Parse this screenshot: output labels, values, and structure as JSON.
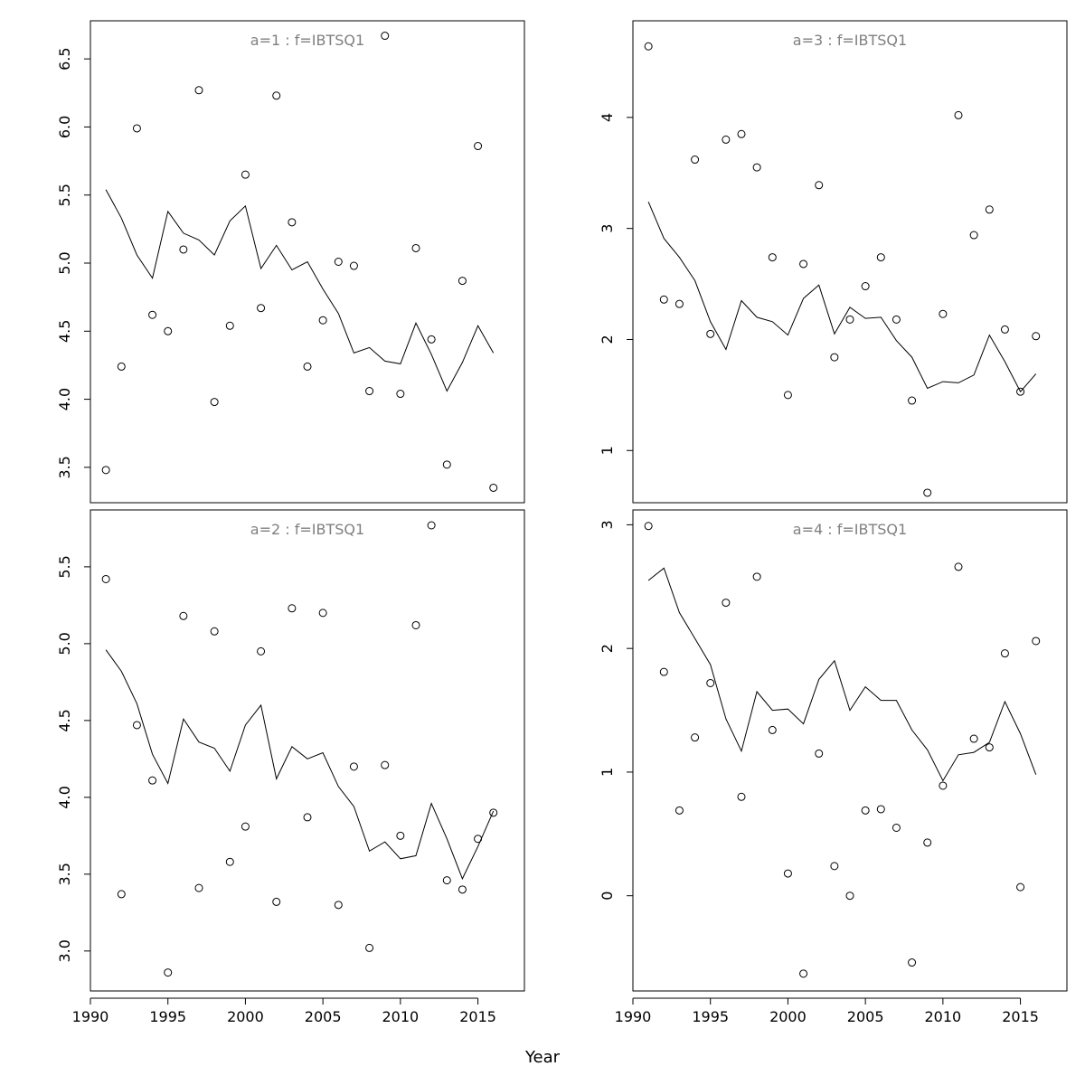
{
  "xlabel": "Year",
  "chart_data": [
    {
      "type": "scatter",
      "title": "a=1  :  f=IBTSQ1",
      "x": [
        1991,
        1992,
        1993,
        1994,
        1995,
        1996,
        1997,
        1998,
        1999,
        2000,
        2001,
        2002,
        2003,
        2004,
        2005,
        2006,
        2007,
        2008,
        2009,
        2010,
        2011,
        2012,
        2013,
        2014,
        2015,
        2016
      ],
      "series": [
        {
          "kind": "points",
          "values": [
            3.48,
            4.24,
            5.99,
            4.62,
            4.5,
            5.1,
            6.27,
            3.98,
            4.54,
            5.65,
            4.67,
            6.23,
            5.3,
            4.24,
            4.58,
            5.01,
            4.98,
            4.06,
            6.67,
            4.04,
            5.11,
            4.44,
            3.52,
            4.87,
            5.86,
            3.35
          ]
        },
        {
          "kind": "line",
          "values": [
            5.54,
            5.33,
            5.06,
            4.89,
            5.38,
            5.22,
            5.17,
            5.06,
            5.31,
            5.42,
            4.96,
            5.13,
            4.95,
            5.01,
            4.81,
            4.63,
            4.34,
            4.38,
            4.28,
            4.26,
            4.56,
            4.33,
            4.06,
            4.27,
            4.54,
            4.34
          ]
        }
      ],
      "xlim": [
        1990,
        2018
      ],
      "ylim": [
        3.24,
        6.78
      ],
      "yticks": [
        3.5,
        4.0,
        4.5,
        5.0,
        5.5,
        6.0,
        6.5
      ],
      "ytick_labels": [
        "3.5",
        "4.0",
        "4.5",
        "5.0",
        "5.5",
        "6.0",
        "6.5"
      ],
      "xticks": [],
      "xtick_labels": []
    },
    {
      "type": "scatter",
      "title": "a=3  :  f=IBTSQ1",
      "x": [
        1991,
        1992,
        1993,
        1994,
        1995,
        1996,
        1997,
        1998,
        1999,
        2000,
        2001,
        2002,
        2003,
        2004,
        2005,
        2006,
        2007,
        2008,
        2009,
        2010,
        2011,
        2012,
        2013,
        2014,
        2015,
        2016
      ],
      "series": [
        {
          "kind": "points",
          "values": [
            4.64,
            2.36,
            2.32,
            3.62,
            2.05,
            3.8,
            3.85,
            3.55,
            2.74,
            1.5,
            2.68,
            3.39,
            1.84,
            2.18,
            2.48,
            2.74,
            2.18,
            1.45,
            0.62,
            2.23,
            4.02,
            2.94,
            3.17,
            2.09,
            1.53,
            2.03
          ]
        },
        {
          "kind": "line",
          "values": [
            3.24,
            2.91,
            2.74,
            2.53,
            2.16,
            1.91,
            2.35,
            2.2,
            2.16,
            2.04,
            2.37,
            2.49,
            2.05,
            2.29,
            2.19,
            2.2,
            1.99,
            1.84,
            1.56,
            1.62,
            1.61,
            1.68,
            2.04,
            1.8,
            1.53,
            1.69
          ]
        }
      ],
      "xlim": [
        1990,
        2018
      ],
      "ylim": [
        0.53,
        4.87
      ],
      "yticks": [
        1,
        2,
        3,
        4
      ],
      "ytick_labels": [
        "1",
        "2",
        "3",
        "4"
      ],
      "xticks": [],
      "xtick_labels": []
    },
    {
      "type": "scatter",
      "title": "a=2  :  f=IBTSQ1",
      "x": [
        1991,
        1992,
        1993,
        1994,
        1995,
        1996,
        1997,
        1998,
        1999,
        2000,
        2001,
        2002,
        2003,
        2004,
        2005,
        2006,
        2007,
        2008,
        2009,
        2010,
        2011,
        2012,
        2013,
        2014,
        2015,
        2016
      ],
      "series": [
        {
          "kind": "points",
          "values": [
            5.42,
            3.37,
            4.47,
            4.11,
            2.86,
            5.18,
            3.41,
            5.08,
            3.58,
            3.81,
            4.95,
            3.32,
            5.23,
            3.87,
            5.2,
            3.3,
            4.2,
            3.02,
            4.21,
            3.75,
            5.12,
            5.77,
            3.46,
            3.4,
            3.73,
            3.9
          ]
        },
        {
          "kind": "line",
          "values": [
            4.96,
            4.82,
            4.61,
            4.28,
            4.09,
            4.51,
            4.36,
            4.32,
            4.17,
            4.47,
            4.6,
            4.12,
            4.33,
            4.25,
            4.29,
            4.07,
            3.94,
            3.65,
            3.71,
            3.6,
            3.62,
            3.96,
            3.73,
            3.47,
            3.68,
            3.91
          ]
        }
      ],
      "xlim": [
        1990,
        2018
      ],
      "ylim": [
        2.74,
        5.87
      ],
      "yticks": [
        3.0,
        3.5,
        4.0,
        4.5,
        5.0,
        5.5
      ],
      "ytick_labels": [
        "3.0",
        "3.5",
        "4.0",
        "4.5",
        "5.0",
        "5.5"
      ],
      "xticks": [
        1990,
        1995,
        2000,
        2005,
        2010,
        2015
      ],
      "xtick_labels": [
        "1990",
        "1995",
        "2000",
        "2005",
        "2010",
        "2015"
      ]
    },
    {
      "type": "scatter",
      "title": "a=4  :  f=IBTSQ1",
      "x": [
        1991,
        1992,
        1993,
        1994,
        1995,
        1996,
        1997,
        1998,
        1999,
        2000,
        2001,
        2002,
        2003,
        2004,
        2005,
        2006,
        2007,
        2008,
        2009,
        2010,
        2011,
        2012,
        2013,
        2014,
        2015,
        2016
      ],
      "series": [
        {
          "kind": "points",
          "values": [
            2.99,
            1.81,
            0.69,
            1.28,
            1.72,
            2.37,
            0.8,
            2.58,
            1.34,
            0.18,
            -0.63,
            1.15,
            0.24,
            0.0,
            0.69,
            0.7,
            0.55,
            -0.54,
            0.43,
            0.89,
            2.66,
            1.27,
            1.2,
            1.96,
            0.07,
            2.06
          ]
        },
        {
          "kind": "line",
          "values": [
            2.55,
            2.65,
            2.29,
            2.08,
            1.87,
            1.43,
            1.17,
            1.65,
            1.5,
            1.51,
            1.39,
            1.75,
            1.9,
            1.5,
            1.69,
            1.58,
            1.58,
            1.34,
            1.18,
            0.93,
            1.14,
            1.16,
            1.24,
            1.57,
            1.31,
            0.98
          ]
        }
      ],
      "xlim": [
        1990,
        2018
      ],
      "ylim": [
        -0.77,
        3.12
      ],
      "yticks": [
        0,
        1,
        2,
        3
      ],
      "ytick_labels": [
        "0",
        "1",
        "2",
        "3"
      ],
      "xticks": [
        1990,
        1995,
        2000,
        2005,
        2010,
        2015
      ],
      "xtick_labels": [
        "1990",
        "1995",
        "2000",
        "2005",
        "2010",
        "2015"
      ]
    }
  ]
}
